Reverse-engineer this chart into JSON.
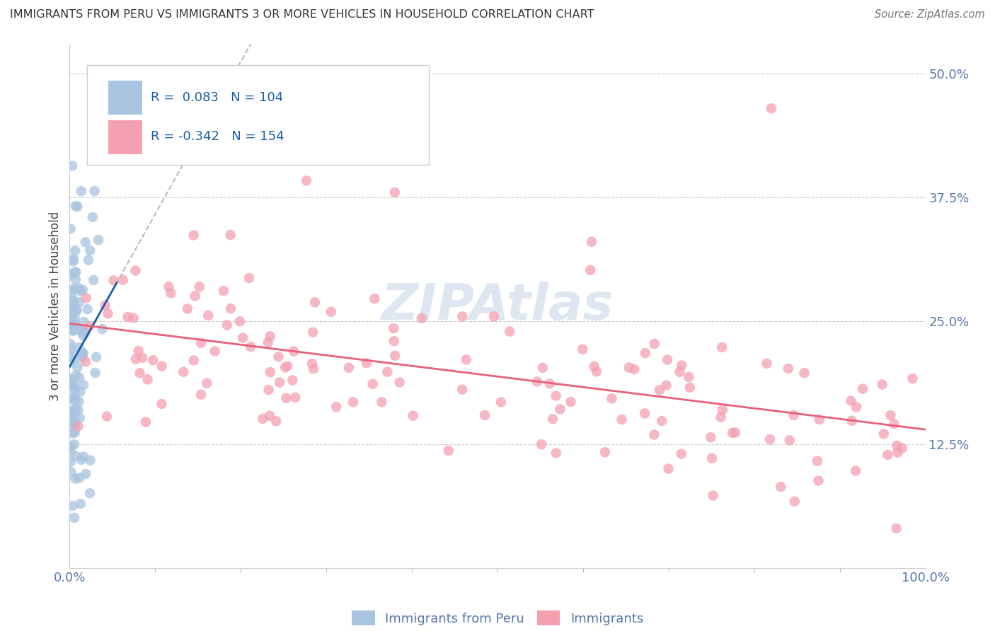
{
  "title": "IMMIGRANTS FROM PERU VS IMMIGRANTS 3 OR MORE VEHICLES IN HOUSEHOLD CORRELATION CHART",
  "source": "Source: ZipAtlas.com",
  "ylabel": "3 or more Vehicles in Household",
  "yticks": [
    0.125,
    0.25,
    0.375,
    0.5
  ],
  "ytick_labels": [
    "12.5%",
    "25.0%",
    "37.5%",
    "50.0%"
  ],
  "legend_labels": [
    "Immigrants from Peru",
    "Immigrants"
  ],
  "blue_R": 0.083,
  "blue_N": 104,
  "pink_R": -0.342,
  "pink_N": 154,
  "blue_color": "#a8c4e0",
  "pink_color": "#f4a0b0",
  "blue_line_color": "#1a5fa8",
  "pink_line_color": "#e8607a",
  "axis_label_color": "#5577aa",
  "legend_text_color": "#1a5fa8",
  "watermark_color": "#c8d8e8",
  "grid_color": "#cccccc",
  "legend_box_color": "#dddddd"
}
